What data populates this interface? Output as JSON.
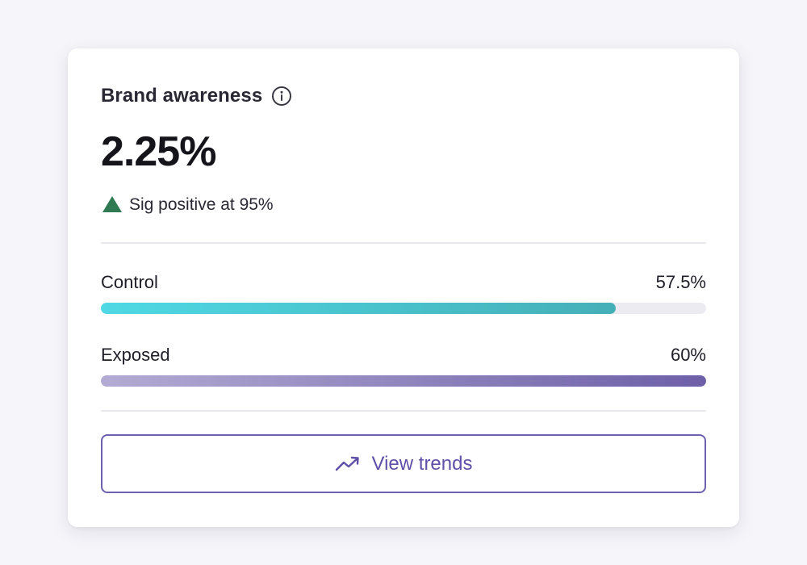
{
  "card": {
    "title": "Brand awareness",
    "info_icon": "info-icon",
    "value": "2.25%",
    "significance": {
      "icon": "up-triangle-icon",
      "text": "Sig positive at 95%",
      "color": "#2f7a53"
    }
  },
  "metrics": [
    {
      "label": "Control",
      "value": "57.5%",
      "fill_fraction": 0.85,
      "colors": [
        "#4fd9e4",
        "#45afb7"
      ]
    },
    {
      "label": "Exposed",
      "value": "60%",
      "fill_fraction": 1.0,
      "colors": [
        "#b3abd3",
        "#6e5fa8"
      ]
    }
  ],
  "button": {
    "label": "View trends",
    "icon": "trending-up-icon",
    "color": "#5f4fa8"
  }
}
